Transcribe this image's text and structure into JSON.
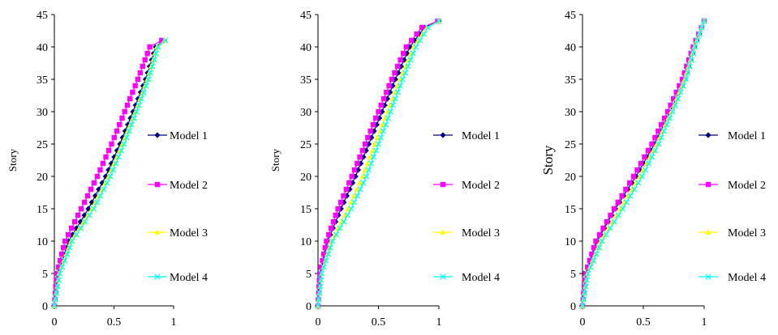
{
  "chart_data": [
    {
      "type": "line",
      "ylabel": "Story",
      "xlim": [
        0,
        1
      ],
      "ylim": [
        0,
        45
      ],
      "x_ticks": [
        0,
        0.5,
        1
      ],
      "y_ticks": [
        0,
        5,
        10,
        15,
        20,
        25,
        30,
        35,
        40,
        45
      ],
      "grid": false,
      "legend_placement": "right",
      "series": [
        {
          "name": "Model 1",
          "color": "#000080",
          "marker": "diamond",
          "x": [
            0,
            0.03,
            0.12,
            0.285,
            0.43,
            0.55,
            0.66,
            0.765,
            0.85,
            0.92
          ],
          "y": [
            0,
            5,
            10,
            15,
            20,
            25,
            30,
            35,
            40,
            41
          ]
        },
        {
          "name": "Model 2",
          "color": "#FF00FF",
          "marker": "square",
          "x": [
            0,
            0.02,
            0.09,
            0.225,
            0.36,
            0.48,
            0.59,
            0.7,
            0.8,
            0.9,
            0.915
          ],
          "y": [
            0,
            5,
            10,
            15,
            20,
            25,
            30,
            35,
            40,
            41,
            41
          ]
        },
        {
          "name": "Model 3",
          "color": "#FFFF00",
          "marker": "triangle",
          "x": [
            0,
            0.04,
            0.14,
            0.315,
            0.455,
            0.57,
            0.68,
            0.78,
            0.86,
            0.925
          ],
          "y": [
            0,
            5,
            10,
            15,
            20,
            25,
            30,
            35,
            40,
            41
          ]
        },
        {
          "name": "Model 4",
          "color": "#00FFFF",
          "marker": "x",
          "x": [
            0,
            0.045,
            0.15,
            0.33,
            0.47,
            0.585,
            0.69,
            0.79,
            0.87,
            0.93
          ],
          "y": [
            0,
            5,
            10,
            15,
            20,
            25,
            30,
            35,
            40,
            41
          ]
        }
      ]
    },
    {
      "type": "line",
      "ylabel": "Story",
      "xlim": [
        0,
        1
      ],
      "ylim": [
        0,
        45
      ],
      "x_ticks": [
        0,
        0.5,
        1
      ],
      "y_ticks": [
        0,
        5,
        10,
        15,
        20,
        25,
        30,
        35,
        40,
        45
      ],
      "grid": false,
      "legend_placement": "right",
      "series": [
        {
          "name": "Model 1",
          "color": "#000080",
          "marker": "diamond",
          "x": [
            0,
            0.02,
            0.08,
            0.19,
            0.31,
            0.42,
            0.53,
            0.64,
            0.76,
            0.88,
            1.0
          ],
          "y": [
            0,
            5,
            10,
            15,
            20,
            25,
            30,
            35,
            40,
            43,
            44
          ]
        },
        {
          "name": "Model 2",
          "color": "#FF00FF",
          "marker": "square",
          "x": [
            0,
            0.015,
            0.07,
            0.165,
            0.28,
            0.39,
            0.5,
            0.61,
            0.73,
            0.86,
            0.99
          ],
          "y": [
            0,
            5,
            10,
            15,
            20,
            25,
            30,
            35,
            40,
            43,
            44
          ]
        },
        {
          "name": "Model 3",
          "color": "#FFFF00",
          "marker": "triangle",
          "x": [
            0,
            0.03,
            0.11,
            0.25,
            0.37,
            0.47,
            0.575,
            0.68,
            0.79,
            0.9,
            1.0
          ],
          "y": [
            0,
            5,
            10,
            15,
            20,
            25,
            30,
            35,
            40,
            43,
            44
          ]
        },
        {
          "name": "Model 4",
          "color": "#00FFFF",
          "marker": "x",
          "x": [
            0,
            0.03,
            0.12,
            0.275,
            0.4,
            0.5,
            0.6,
            0.7,
            0.81,
            0.91,
            1.0
          ],
          "y": [
            0,
            5,
            10,
            15,
            20,
            25,
            30,
            35,
            40,
            43,
            44
          ]
        }
      ]
    },
    {
      "type": "line",
      "ylabel": "Story",
      "xlim": [
        0,
        1
      ],
      "ylim": [
        0,
        45
      ],
      "x_ticks": [
        0,
        0.5,
        1
      ],
      "y_ticks": [
        0,
        5,
        10,
        15,
        20,
        25,
        30,
        35,
        40,
        45
      ],
      "grid": false,
      "legend_placement": "right",
      "series": [
        {
          "name": "Model 1",
          "color": "#000080",
          "marker": "diamond",
          "x": [
            0,
            0.03,
            0.12,
            0.27,
            0.44,
            0.59,
            0.72,
            0.84,
            0.92,
            1.0
          ],
          "y": [
            0,
            5,
            10,
            15,
            20,
            25,
            30,
            35,
            40,
            44
          ]
        },
        {
          "name": "Model 2",
          "color": "#FF00FF",
          "marker": "square",
          "x": [
            0,
            0.025,
            0.11,
            0.26,
            0.42,
            0.57,
            0.7,
            0.82,
            0.91,
            1.0
          ],
          "y": [
            0,
            5,
            10,
            15,
            20,
            25,
            30,
            35,
            40,
            44
          ]
        },
        {
          "name": "Model 3",
          "color": "#FFFF00",
          "marker": "triangle",
          "x": [
            0,
            0.04,
            0.15,
            0.31,
            0.47,
            0.61,
            0.73,
            0.84,
            0.92,
            1.0
          ],
          "y": [
            0,
            5,
            10,
            15,
            20,
            25,
            30,
            35,
            40,
            44
          ]
        },
        {
          "name": "Model 4",
          "color": "#00FFFF",
          "marker": "x",
          "x": [
            0,
            0.045,
            0.16,
            0.33,
            0.49,
            0.625,
            0.74,
            0.85,
            0.925,
            1.0
          ],
          "y": [
            0,
            5,
            10,
            15,
            20,
            25,
            30,
            35,
            40,
            44
          ]
        }
      ]
    }
  ]
}
